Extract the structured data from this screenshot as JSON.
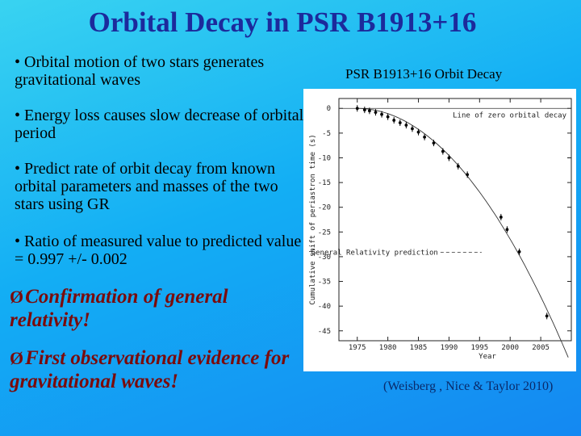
{
  "slide": {
    "title": "Orbital Decay in PSR B1913+16",
    "bullets": [
      "• Orbital motion of two stars generates gravitational waves",
      "• Energy loss causes slow decrease of orbital period",
      "• Predict rate of orbit decay from known orbital parameters and masses of the two stars using GR",
      "• Ratio of measured value to predicted value = 0.997 +/- 0.002"
    ],
    "conclusions": [
      {
        "arrow": "Ø",
        "text": "Confirmation of general relativity!"
      },
      {
        "arrow": "Ø",
        "text": "First observational evidence for gravitational waves!"
      }
    ],
    "plot_title": "PSR B1913+16 Orbit Decay",
    "credit": "(Weisberg , Nice & Taylor 2010)"
  },
  "chart_data": {
    "type": "scatter",
    "xlabel": "Year",
    "ylabel": "Cumulative shift of periastron time (s)",
    "xlim": [
      1972,
      2010
    ],
    "ylim": [
      -47,
      2
    ],
    "xticks": [
      1975,
      1980,
      1985,
      1990,
      1995,
      2000,
      2005
    ],
    "yticks": [
      0,
      -5,
      -10,
      -15,
      -20,
      -25,
      -30,
      -35,
      -40,
      -45
    ],
    "zero_line_label": "Line of zero orbital decay",
    "curve_label": "General Relativity prediction",
    "series": [
      {
        "values_x": [
          1975.0,
          1976.2,
          1977.0,
          1978.0,
          1979.0,
          1980.0,
          1981.0,
          1982.0,
          1983.0,
          1984.0,
          1985.0,
          1986.0,
          1987.5,
          1989.0,
          1990.0,
          1991.5,
          1993.0,
          1998.5,
          1999.5,
          2001.5,
          2006.0
        ],
        "values_y": [
          0.0,
          -0.3,
          -0.5,
          -0.8,
          -1.2,
          -1.7,
          -2.4,
          -2.9,
          -3.4,
          -4.1,
          -4.8,
          -5.8,
          -7.0,
          -8.7,
          -10.0,
          -11.7,
          -13.4,
          -22.0,
          -24.5,
          -29.0,
          -42.0
        ]
      }
    ]
  }
}
